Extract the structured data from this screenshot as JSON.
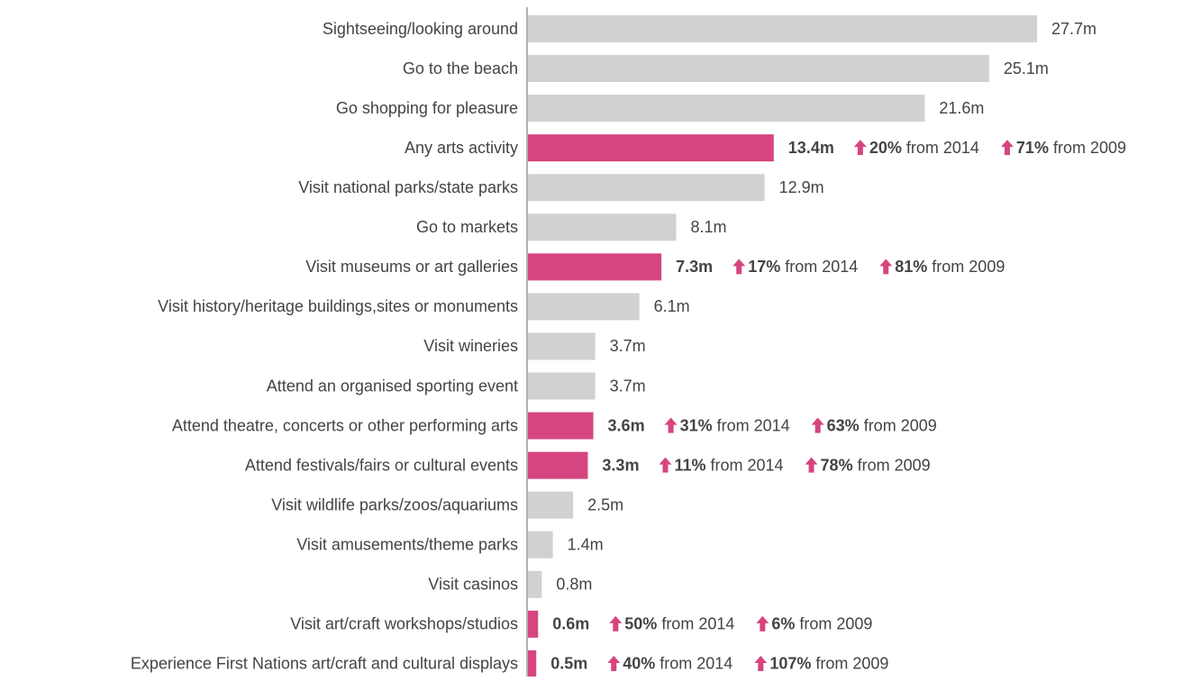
{
  "chart_data": {
    "type": "bar",
    "orientation": "horizontal",
    "categories": [
      "Sightseeing/looking around",
      "Go to the beach",
      "Go shopping for pleasure",
      "Any arts activity",
      "Visit national parks/state parks",
      "Go to markets",
      "Visit museums or art galleries",
      "Visit history/heritage buildings,sites or monuments",
      "Visit wineries",
      "Attend an organised sporting event",
      "Attend theatre, concerts or other performing arts",
      "Attend festivals/fairs or cultural events",
      "Visit wildlife parks/zoos/aquariums",
      "Visit amusements/theme parks",
      "Visit casinos",
      "Visit art/craft workshops/studios",
      "Experience First Nations art/craft and cultural displays"
    ],
    "values": [
      27.7,
      25.1,
      21.6,
      13.4,
      12.9,
      8.1,
      7.3,
      6.1,
      3.7,
      3.7,
      3.6,
      3.3,
      2.5,
      1.4,
      0.8,
      0.6,
      0.5
    ],
    "value_labels": [
      "27.7m",
      "25.1m",
      "21.6m",
      "13.4m",
      "12.9m",
      "8.1m",
      "7.3m",
      "6.1m",
      "3.7m",
      "3.7m",
      "3.6m",
      "3.3m",
      "2.5m",
      "1.4m",
      "0.8m",
      "0.6m",
      "0.5m"
    ],
    "colors": [
      "#d1d1d3",
      "#d1d1d3",
      "#d1d1d3",
      "#d6457f",
      "#d1d1d3",
      "#d1d1d3",
      "#d6457f",
      "#d1d1d3",
      "#d1d1d3",
      "#d1d1d3",
      "#d6457f",
      "#d6457f",
      "#d1d1d3",
      "#d1d1d3",
      "#d1d1d3",
      "#d6457f",
      "#d6457f"
    ],
    "growth_labels": [
      "from 2014",
      "from 2009"
    ],
    "growth": [
      null,
      null,
      null,
      [
        {
          "value": 20,
          "label": "20%"
        },
        {
          "value": 71,
          "label": "71%"
        }
      ],
      null,
      null,
      [
        {
          "value": 17,
          "label": "17%"
        },
        {
          "value": 81,
          "label": "81%"
        }
      ],
      null,
      null,
      null,
      [
        {
          "value": 31,
          "label": "31%"
        },
        {
          "value": 63,
          "label": "63%"
        }
      ],
      [
        {
          "value": 11,
          "label": "11%"
        },
        {
          "value": 78,
          "label": "78%"
        }
      ],
      null,
      null,
      null,
      [
        {
          "value": 50,
          "label": "50%"
        },
        {
          "value": 6,
          "label": "6%"
        }
      ],
      [
        {
          "value": 40,
          "label": "40%"
        },
        {
          "value": 107,
          "label": "107%"
        }
      ]
    ]
  }
}
